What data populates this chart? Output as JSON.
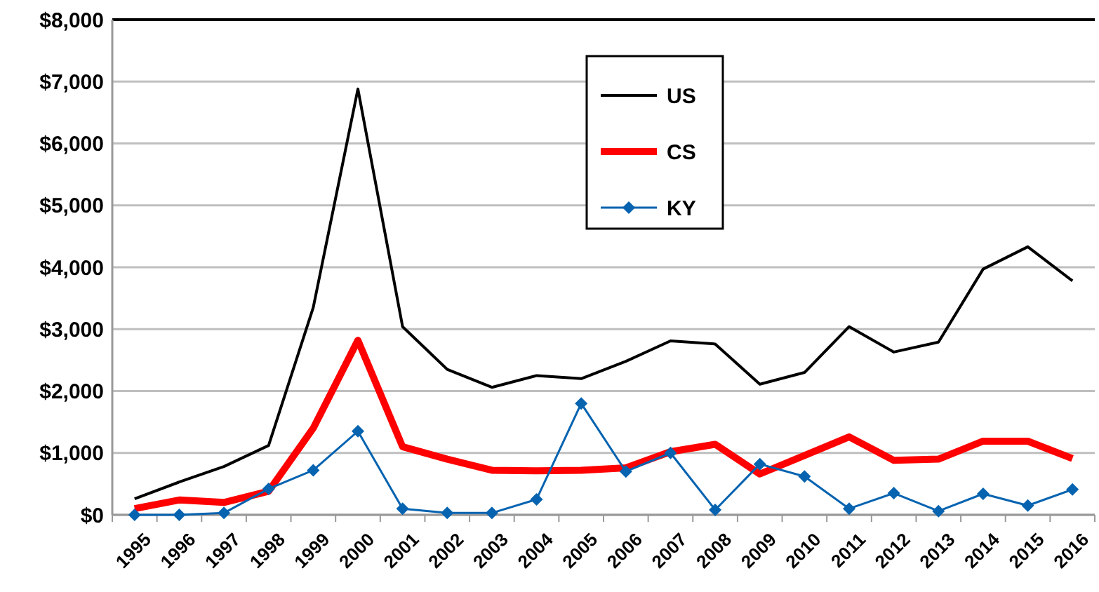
{
  "chart_data": {
    "type": "line",
    "categories": [
      "1995",
      "1996",
      "1997",
      "1998",
      "1999",
      "2000",
      "2001",
      "2002",
      "2003",
      "2004",
      "2005",
      "2006",
      "2007",
      "2008",
      "2009",
      "2010",
      "2011",
      "2012",
      "2013",
      "2014",
      "2015",
      "2016"
    ],
    "series": [
      {
        "name": "US",
        "color": "#000000",
        "marker": "none",
        "values": [
          260,
          530,
          780,
          1120,
          3350,
          6880,
          3040,
          2350,
          2060,
          2250,
          2200,
          2480,
          2810,
          2760,
          2110,
          2300,
          3040,
          2630,
          2790,
          3970,
          4330,
          3780
        ]
      },
      {
        "name": "CS",
        "color": "#ff0000",
        "marker": "none",
        "values": [
          100,
          240,
          200,
          380,
          1400,
          2820,
          1100,
          900,
          720,
          710,
          720,
          760,
          1020,
          1140,
          660,
          960,
          1260,
          880,
          900,
          1190,
          1190,
          910
        ]
      },
      {
        "name": "KY",
        "color": "#0563b0",
        "marker": "diamond",
        "values": [
          0,
          0,
          30,
          420,
          720,
          1350,
          100,
          30,
          30,
          250,
          1800,
          700,
          1000,
          80,
          820,
          620,
          100,
          350,
          60,
          340,
          150,
          410
        ]
      }
    ],
    "ylim": [
      0,
      8000
    ],
    "yticks": [
      {
        "value": 0,
        "label": "$0"
      },
      {
        "value": 1000,
        "label": "$1,000"
      },
      {
        "value": 2000,
        "label": "$2,000"
      },
      {
        "value": 3000,
        "label": "$3,000"
      },
      {
        "value": 4000,
        "label": "$4,000"
      },
      {
        "value": 5000,
        "label": "$5,000"
      },
      {
        "value": 6000,
        "label": "$6,000"
      },
      {
        "value": 7000,
        "label": "$7,000"
      },
      {
        "value": 8000,
        "label": "$8,000"
      }
    ],
    "grid": "y",
    "legend": "top"
  }
}
